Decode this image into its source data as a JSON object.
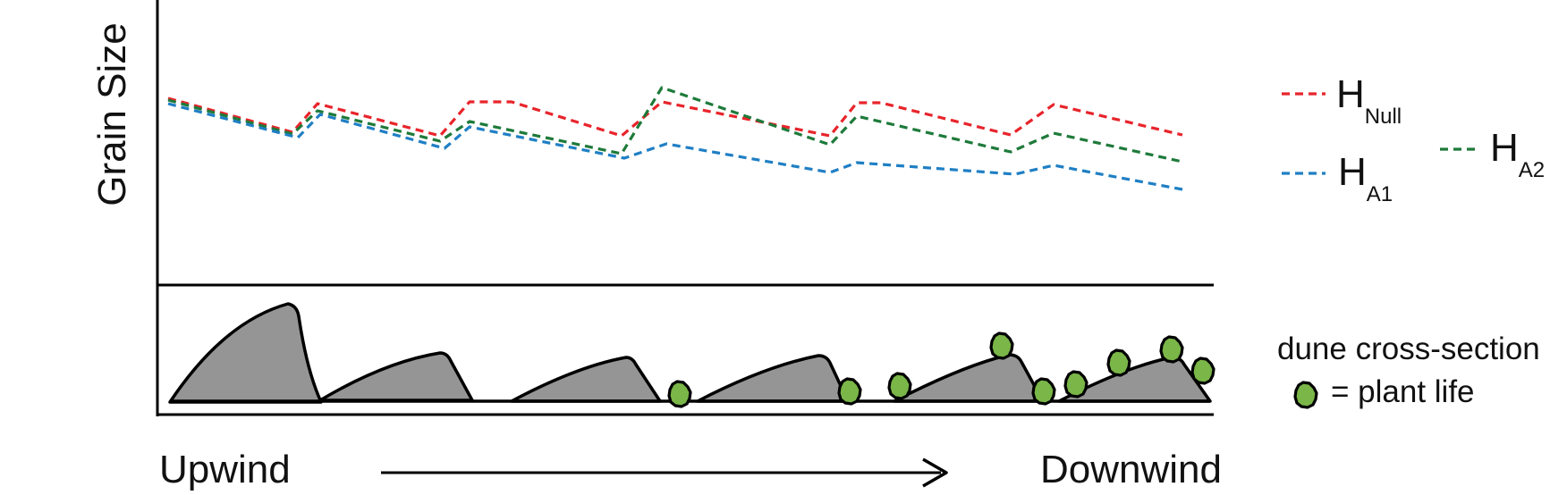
{
  "ylabel": "Grain Size",
  "xlabel_left": "Upwind",
  "xlabel_right": "Downwind",
  "legend": [
    {
      "base": "H",
      "sub": "Null",
      "color": "#e8242b"
    },
    {
      "base": "H",
      "sub": "A1",
      "color": "#1f7fc4"
    },
    {
      "base": "H",
      "sub": "A2",
      "color": "#1e7a3a"
    }
  ],
  "cross_section_label": "dune cross-section",
  "plant_label": "= plant life",
  "colors": {
    "dune": "#959595",
    "plant": "#7ab648",
    "axis": "#000000"
  }
}
